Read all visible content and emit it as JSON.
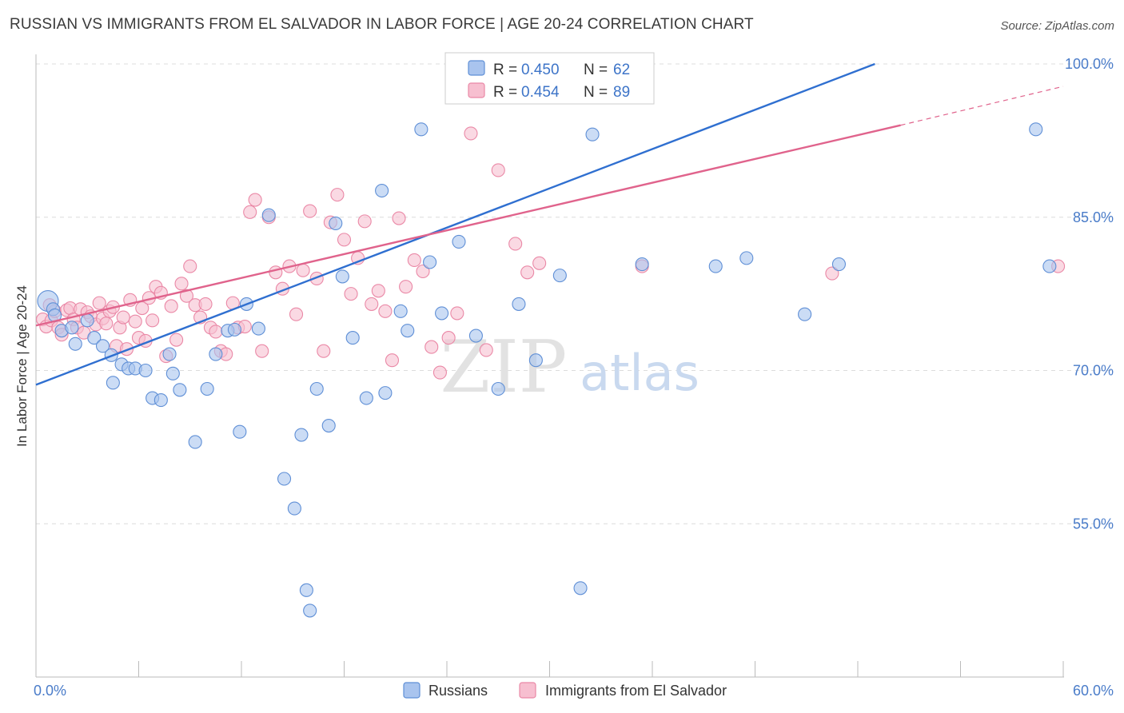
{
  "header": {
    "title": "RUSSIAN VS IMMIGRANTS FROM EL SALVADOR IN LABOR FORCE | AGE 20-24 CORRELATION CHART",
    "source": "Source: ZipAtlas.com"
  },
  "watermark": {
    "zip": "ZIP",
    "atlas": "atlas"
  },
  "colors": {
    "russians_fill": "#a9c4ee",
    "russians_stroke": "#5f8fd6",
    "russians_line": "#2f6fd0",
    "salvador_fill": "#f7bfd0",
    "salvador_stroke": "#ea88a6",
    "salvador_line": "#e0638c",
    "axis_label": "#4a7cc9",
    "grid": "#dcdcdc"
  },
  "legend": {
    "rows": [
      {
        "r_label": "R = ",
        "r_value": "0.450",
        "n_label": "N = ",
        "n_value": "62"
      },
      {
        "r_label": "R = ",
        "r_value": "0.454",
        "n_label": "N = ",
        "n_value": "89"
      }
    ]
  },
  "bottom_legend": {
    "items": [
      "Russians",
      "Immigrants from El Salvador"
    ]
  },
  "chart_data": {
    "type": "scatter",
    "title": "RUSSIAN VS IMMIGRANTS FROM EL SALVADOR IN LABOR FORCE | AGE 20-24 CORRELATION CHART",
    "xlabel": "",
    "ylabel": "In Labor Force | Age 20-24",
    "xlim": [
      0,
      60
    ],
    "ylim": [
      40,
      100
    ],
    "x_tick_labels": [
      "0.0%",
      "60.0%"
    ],
    "y_ticks": [
      55,
      70,
      85,
      100
    ],
    "y_tick_labels": [
      "55.0%",
      "70.0%",
      "85.0%",
      "100.0%"
    ],
    "grid": true,
    "legend_position": "top-center",
    "series": [
      {
        "name": "Russians",
        "r": 0.45,
        "n": 62,
        "trend": {
          "x0": 0,
          "y0": 68.6,
          "x1": 49.0,
          "y1": 100.0
        },
        "points": [
          [
            0.7,
            76.8
          ],
          [
            1.0,
            76.0
          ],
          [
            1.1,
            75.4
          ],
          [
            1.5,
            73.9
          ],
          [
            2.1,
            74.2
          ],
          [
            2.3,
            72.6
          ],
          [
            3.0,
            74.9
          ],
          [
            3.4,
            73.2
          ],
          [
            3.9,
            72.4
          ],
          [
            4.4,
            71.5
          ],
          [
            4.5,
            68.8
          ],
          [
            5.0,
            70.6
          ],
          [
            5.4,
            70.2
          ],
          [
            5.8,
            70.2
          ],
          [
            6.4,
            70.0
          ],
          [
            6.8,
            67.3
          ],
          [
            7.3,
            67.1
          ],
          [
            7.8,
            71.6
          ],
          [
            8.0,
            69.7
          ],
          [
            8.4,
            68.1
          ],
          [
            9.3,
            63.0
          ],
          [
            10.0,
            68.2
          ],
          [
            10.5,
            71.6
          ],
          [
            11.2,
            73.9
          ],
          [
            11.6,
            74.0
          ],
          [
            11.9,
            64.0
          ],
          [
            12.3,
            76.5
          ],
          [
            13.0,
            74.1
          ],
          [
            13.6,
            85.2
          ],
          [
            14.5,
            59.4
          ],
          [
            15.1,
            56.5
          ],
          [
            15.5,
            63.7
          ],
          [
            15.8,
            48.5
          ],
          [
            16.0,
            46.5
          ],
          [
            16.4,
            68.2
          ],
          [
            17.1,
            64.6
          ],
          [
            17.5,
            84.4
          ],
          [
            17.9,
            79.2
          ],
          [
            18.5,
            73.2
          ],
          [
            19.3,
            67.3
          ],
          [
            20.2,
            87.6
          ],
          [
            20.4,
            67.8
          ],
          [
            21.3,
            75.8
          ],
          [
            21.7,
            73.9
          ],
          [
            22.5,
            93.6
          ],
          [
            23.0,
            80.6
          ],
          [
            23.7,
            75.6
          ],
          [
            24.7,
            82.6
          ],
          [
            25.7,
            73.4
          ],
          [
            27.0,
            68.2
          ],
          [
            28.2,
            76.5
          ],
          [
            29.2,
            71.0
          ],
          [
            30.6,
            79.3
          ],
          [
            31.8,
            48.7
          ],
          [
            32.5,
            93.1
          ],
          [
            35.4,
            80.4
          ],
          [
            39.7,
            80.2
          ],
          [
            41.5,
            81.0
          ],
          [
            44.9,
            75.5
          ],
          [
            46.9,
            80.4
          ],
          [
            58.4,
            93.6
          ],
          [
            59.2,
            80.2
          ]
        ]
      },
      {
        "name": "Immigrants from El Salvador",
        "r": 0.454,
        "n": 89,
        "trend": {
          "x0": 0,
          "y0": 74.4,
          "x1": 50.5,
          "y1": 94.0,
          "x_dash_end": 60.0,
          "y_dash_end": 97.8
        },
        "points": [
          [
            0.4,
            75.0
          ],
          [
            0.6,
            74.3
          ],
          [
            0.8,
            76.4
          ],
          [
            0.9,
            74.9
          ],
          [
            1.1,
            75.8
          ],
          [
            1.3,
            74.2
          ],
          [
            1.5,
            73.5
          ],
          [
            1.8,
            75.9
          ],
          [
            2.0,
            76.1
          ],
          [
            2.2,
            75.0
          ],
          [
            2.4,
            74.2
          ],
          [
            2.6,
            76.0
          ],
          [
            2.8,
            73.7
          ],
          [
            3.0,
            75.7
          ],
          [
            3.2,
            75.3
          ],
          [
            3.5,
            74.5
          ],
          [
            3.7,
            76.6
          ],
          [
            3.9,
            75.1
          ],
          [
            4.1,
            74.6
          ],
          [
            4.3,
            75.8
          ],
          [
            4.5,
            76.2
          ],
          [
            4.7,
            72.4
          ],
          [
            4.9,
            74.2
          ],
          [
            5.1,
            75.2
          ],
          [
            5.3,
            72.1
          ],
          [
            5.5,
            76.9
          ],
          [
            5.8,
            74.8
          ],
          [
            6.0,
            73.2
          ],
          [
            6.2,
            76.1
          ],
          [
            6.4,
            72.9
          ],
          [
            6.6,
            77.1
          ],
          [
            6.8,
            74.9
          ],
          [
            7.0,
            78.2
          ],
          [
            7.3,
            77.6
          ],
          [
            7.6,
            71.4
          ],
          [
            7.9,
            76.3
          ],
          [
            8.2,
            73.0
          ],
          [
            8.5,
            78.5
          ],
          [
            8.8,
            77.3
          ],
          [
            9.0,
            80.2
          ],
          [
            9.3,
            76.4
          ],
          [
            9.6,
            75.2
          ],
          [
            9.9,
            76.5
          ],
          [
            10.2,
            74.2
          ],
          [
            10.5,
            73.8
          ],
          [
            10.8,
            71.9
          ],
          [
            11.1,
            71.6
          ],
          [
            11.5,
            76.6
          ],
          [
            11.8,
            74.2
          ],
          [
            12.2,
            74.3
          ],
          [
            12.5,
            85.5
          ],
          [
            12.8,
            86.7
          ],
          [
            13.2,
            71.9
          ],
          [
            13.6,
            85.0
          ],
          [
            14.0,
            79.6
          ],
          [
            14.4,
            78.0
          ],
          [
            14.8,
            80.2
          ],
          [
            15.2,
            75.5
          ],
          [
            15.6,
            79.8
          ],
          [
            16.0,
            85.6
          ],
          [
            16.4,
            79.0
          ],
          [
            16.8,
            71.9
          ],
          [
            17.2,
            84.5
          ],
          [
            17.6,
            87.2
          ],
          [
            18.0,
            82.8
          ],
          [
            18.4,
            77.5
          ],
          [
            18.8,
            81.0
          ],
          [
            19.2,
            84.6
          ],
          [
            19.6,
            76.5
          ],
          [
            20.0,
            77.8
          ],
          [
            20.4,
            75.8
          ],
          [
            20.8,
            71.0
          ],
          [
            21.2,
            84.9
          ],
          [
            21.6,
            78.2
          ],
          [
            22.1,
            80.8
          ],
          [
            22.6,
            79.7
          ],
          [
            23.1,
            72.3
          ],
          [
            23.6,
            69.8
          ],
          [
            24.1,
            73.2
          ],
          [
            24.6,
            75.6
          ],
          [
            25.4,
            93.2
          ],
          [
            26.3,
            72.0
          ],
          [
            27.0,
            89.6
          ],
          [
            28.0,
            82.4
          ],
          [
            28.7,
            79.6
          ],
          [
            29.4,
            80.5
          ],
          [
            35.4,
            80.2
          ],
          [
            46.5,
            79.5
          ],
          [
            59.7,
            80.2
          ]
        ]
      }
    ]
  }
}
